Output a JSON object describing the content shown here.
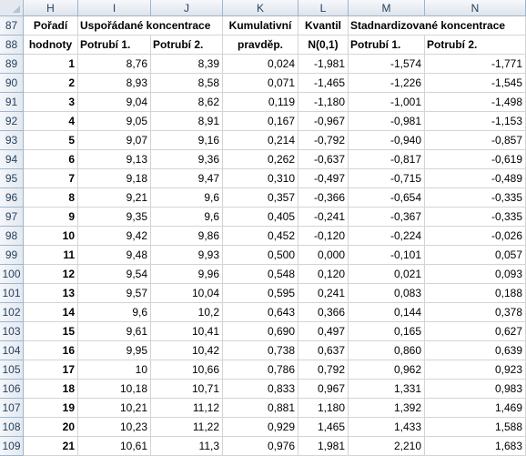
{
  "column_headers": [
    "H",
    "I",
    "J",
    "K",
    "L",
    "M",
    "N"
  ],
  "row_numbers": [
    "87",
    "88",
    "89",
    "90",
    "91",
    "92",
    "93",
    "94",
    "95",
    "96",
    "97",
    "98",
    "99",
    "100",
    "101",
    "102",
    "103",
    "104",
    "105",
    "106",
    "107",
    "108",
    "109"
  ],
  "header_row1": {
    "H": "Pořadí",
    "IJ": "Uspořádané koncentrace",
    "K": "Kumulativní",
    "L": "Kvantil",
    "MN": "Stadnardizované koncentrace"
  },
  "header_row2": {
    "H": "hodnoty",
    "I": "Potrubí 1.",
    "J": "Potrubí 2.",
    "K": "pravděp.",
    "L": "N(0,1)",
    "M": "Potrubí 1.",
    "N": "Potrubí 2."
  },
  "rows": [
    [
      "1",
      "8,76",
      "8,39",
      "0,024",
      "-1,981",
      "-1,574",
      "-1,771"
    ],
    [
      "2",
      "8,93",
      "8,58",
      "0,071",
      "-1,465",
      "-1,226",
      "-1,545"
    ],
    [
      "3",
      "9,04",
      "8,62",
      "0,119",
      "-1,180",
      "-1,001",
      "-1,498"
    ],
    [
      "4",
      "9,05",
      "8,91",
      "0,167",
      "-0,967",
      "-0,981",
      "-1,153"
    ],
    [
      "5",
      "9,07",
      "9,16",
      "0,214",
      "-0,792",
      "-0,940",
      "-0,857"
    ],
    [
      "6",
      "9,13",
      "9,36",
      "0,262",
      "-0,637",
      "-0,817",
      "-0,619"
    ],
    [
      "7",
      "9,18",
      "9,47",
      "0,310",
      "-0,497",
      "-0,715",
      "-0,489"
    ],
    [
      "8",
      "9,21",
      "9,6",
      "0,357",
      "-0,366",
      "-0,654",
      "-0,335"
    ],
    [
      "9",
      "9,35",
      "9,6",
      "0,405",
      "-0,241",
      "-0,367",
      "-0,335"
    ],
    [
      "10",
      "9,42",
      "9,86",
      "0,452",
      "-0,120",
      "-0,224",
      "-0,026"
    ],
    [
      "11",
      "9,48",
      "9,93",
      "0,500",
      "0,000",
      "-0,101",
      "0,057"
    ],
    [
      "12",
      "9,54",
      "9,96",
      "0,548",
      "0,120",
      "0,021",
      "0,093"
    ],
    [
      "13",
      "9,57",
      "10,04",
      "0,595",
      "0,241",
      "0,083",
      "0,188"
    ],
    [
      "14",
      "9,6",
      "10,2",
      "0,643",
      "0,366",
      "0,144",
      "0,378"
    ],
    [
      "15",
      "9,61",
      "10,41",
      "0,690",
      "0,497",
      "0,165",
      "0,627"
    ],
    [
      "16",
      "9,95",
      "10,42",
      "0,738",
      "0,637",
      "0,860",
      "0,639"
    ],
    [
      "17",
      "10",
      "10,66",
      "0,786",
      "0,792",
      "0,962",
      "0,923"
    ],
    [
      "18",
      "10,18",
      "10,71",
      "0,833",
      "0,967",
      "1,331",
      "0,983"
    ],
    [
      "19",
      "10,21",
      "11,12",
      "0,881",
      "1,180",
      "1,392",
      "1,469"
    ],
    [
      "20",
      "10,23",
      "11,22",
      "0,929",
      "1,465",
      "1,433",
      "1,588"
    ],
    [
      "21",
      "10,61",
      "11,3",
      "0,976",
      "1,981",
      "2,210",
      "1,683"
    ]
  ]
}
